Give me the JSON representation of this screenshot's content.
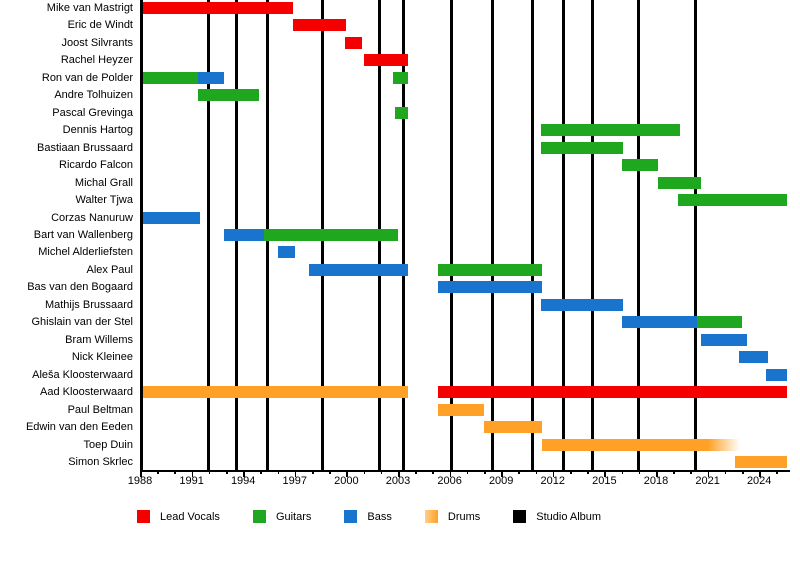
{
  "chart_data": {
    "type": "timeline",
    "description": "Band line-up timeline: member tenures by instrument with studio-album release lines",
    "x_axis": {
      "min_year": 1988,
      "max_year": 2025.9,
      "major_tick_labels": [
        "1988",
        "1991",
        "1994",
        "1997",
        "2000",
        "2003",
        "2006",
        "2009",
        "2012",
        "2015",
        "2018",
        "2021",
        "2024"
      ],
      "minor_tick_every": 1,
      "major_tick_every": 3,
      "grid": "off"
    },
    "roles": {
      "lead_vocals": {
        "label": "Lead Vocals",
        "color": "#f40000"
      },
      "guitars": {
        "label": "Guitars",
        "color": "#1fa81f"
      },
      "bass": {
        "label": "Bass",
        "color": "#1874cd"
      },
      "drums": {
        "label": "Drums",
        "color": "#ffa126"
      },
      "album": {
        "label": "Studio Album",
        "color": "#000000"
      }
    },
    "legend_order": [
      "lead_vocals",
      "guitars",
      "bass",
      "drums",
      "album"
    ],
    "legend_position": "bottom",
    "album_years": [
      1992.0,
      1993.6,
      1995.4,
      1998.6,
      2001.9,
      2003.3,
      2006.1,
      2008.5,
      2010.8,
      2012.6,
      2014.3,
      2017.0,
      2020.3
    ],
    "members": [
      {
        "name": "Mike van Mastrigt",
        "stints": [
          {
            "role": "lead_vocals",
            "start": 1988.0,
            "end": 1996.9
          }
        ]
      },
      {
        "name": "Eric de Windt",
        "stints": [
          {
            "role": "lead_vocals",
            "start": 1996.9,
            "end": 2000.0
          }
        ]
      },
      {
        "name": "Joost Silvrants",
        "stints": [
          {
            "role": "lead_vocals",
            "start": 1999.9,
            "end": 2000.9
          }
        ]
      },
      {
        "name": "Rachel Heyzer",
        "stints": [
          {
            "role": "lead_vocals",
            "start": 2001.0,
            "end": 2003.6
          }
        ]
      },
      {
        "name": "Ron van de Polder",
        "stints": [
          {
            "role": "guitars",
            "start": 1988.0,
            "end": 1991.4
          },
          {
            "role": "bass",
            "start": 1991.4,
            "end": 1992.9
          },
          {
            "role": "guitars",
            "start": 2002.7,
            "end": 2003.6
          }
        ]
      },
      {
        "name": "Andre Tolhuizen",
        "stints": [
          {
            "role": "guitars",
            "start": 1991.4,
            "end": 1994.9
          }
        ]
      },
      {
        "name": "Pascal Grevinga",
        "stints": [
          {
            "role": "guitars",
            "start": 2002.8,
            "end": 2003.6
          }
        ]
      },
      {
        "name": "Dennis Hartog",
        "stints": [
          {
            "role": "guitars",
            "start": 2011.3,
            "end": 2019.4
          }
        ]
      },
      {
        "name": "Bastiaan Brussaard",
        "stints": [
          {
            "role": "guitars",
            "start": 2011.3,
            "end": 2016.1
          }
        ]
      },
      {
        "name": "Ricardo Falcon",
        "stints": [
          {
            "role": "guitars",
            "start": 2016.0,
            "end": 2018.1
          }
        ]
      },
      {
        "name": "Michal Grall",
        "stints": [
          {
            "role": "guitars",
            "start": 2018.1,
            "end": 2020.6
          }
        ]
      },
      {
        "name": "Walter Tjwa",
        "stints": [
          {
            "role": "guitars",
            "start": 2019.3,
            "end": 2025.6
          }
        ]
      },
      {
        "name": "Corzas Nanuruw",
        "stints": [
          {
            "role": "bass",
            "start": 1988.0,
            "end": 1991.5
          }
        ]
      },
      {
        "name": "Bart van Wallenberg",
        "stints": [
          {
            "role": "bass",
            "start": 1992.9,
            "end": 1995.2
          },
          {
            "role": "guitars",
            "start": 1995.2,
            "end": 2003.0
          }
        ]
      },
      {
        "name": "Michel Alderliefsten",
        "stints": [
          {
            "role": "bass",
            "start": 1996.0,
            "end": 1997.0
          }
        ]
      },
      {
        "name": "Alex Paul",
        "stints": [
          {
            "role": "bass",
            "start": 1997.8,
            "end": 2003.6
          },
          {
            "role": "guitars",
            "start": 2005.3,
            "end": 2011.4
          }
        ]
      },
      {
        "name": "Bas van den Bogaard",
        "stints": [
          {
            "role": "bass",
            "start": 2005.3,
            "end": 2011.4
          }
        ]
      },
      {
        "name": "Mathijs Brussaard",
        "stints": [
          {
            "role": "bass",
            "start": 2011.3,
            "end": 2016.1
          }
        ]
      },
      {
        "name": "Ghislain van der Stel",
        "stints": [
          {
            "role": "bass",
            "start": 2016.0,
            "end": 2020.4
          },
          {
            "role": "guitars",
            "start": 2020.4,
            "end": 2023.0
          }
        ]
      },
      {
        "name": "Bram Willems",
        "stints": [
          {
            "role": "bass",
            "start": 2020.6,
            "end": 2023.3
          }
        ]
      },
      {
        "name": "Nick Kleinee",
        "stints": [
          {
            "role": "bass",
            "start": 2022.8,
            "end": 2024.5
          }
        ]
      },
      {
        "name": "Aleša Kloosterwaard",
        "stints": [
          {
            "role": "bass",
            "start": 2024.4,
            "end": 2025.6
          }
        ]
      },
      {
        "name": "Aad Kloosterwaard",
        "stints": [
          {
            "role": "drums",
            "start": 1988.0,
            "end": 2003.6
          },
          {
            "role": "lead_vocals",
            "start": 2005.3,
            "end": 2025.6
          }
        ]
      },
      {
        "name": "Paul Beltman",
        "stints": [
          {
            "role": "drums",
            "start": 2005.3,
            "end": 2008.0
          }
        ]
      },
      {
        "name": "Edwin van den Eeden",
        "stints": [
          {
            "role": "drums",
            "start": 2008.0,
            "end": 2011.4
          }
        ]
      },
      {
        "name": "Toep Duin",
        "stints": [
          {
            "role": "drums",
            "start": 2011.4,
            "end": 2022.9,
            "fade_end": true
          }
        ]
      },
      {
        "name": "Simon Skrlec",
        "stints": [
          {
            "role": "drums",
            "start": 2022.6,
            "end": 2025.6
          }
        ]
      }
    ]
  }
}
